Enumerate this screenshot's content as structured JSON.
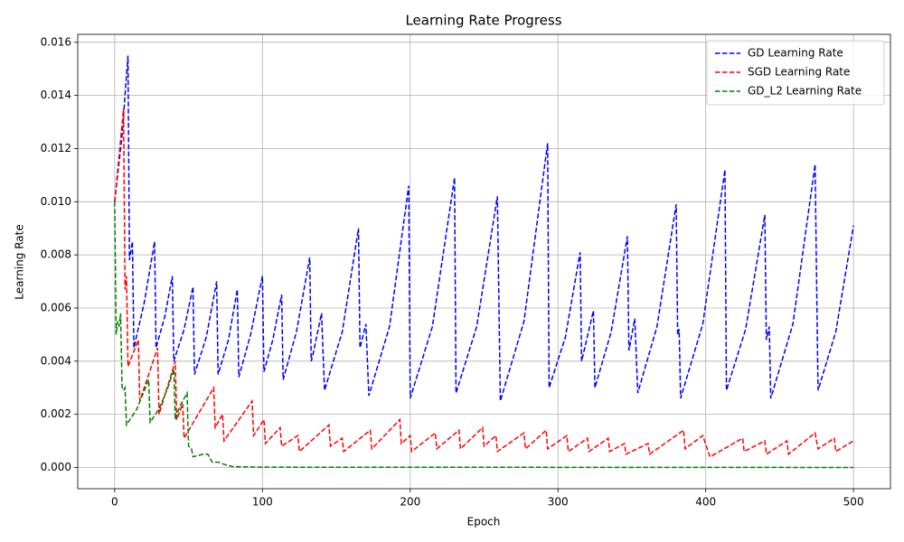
{
  "chart_data": {
    "type": "line",
    "title": "Learning Rate Progress",
    "x_label": "Epoch",
    "y_label": "Learning Rate",
    "xlim": [
      -25,
      525
    ],
    "ylim": [
      -0.0008,
      0.0163
    ],
    "xticks": [
      0,
      100,
      200,
      300,
      400,
      500
    ],
    "yticks": [
      {
        "value": 0,
        "label": "0.000"
      },
      {
        "value": 0.002,
        "label": "0.002"
      },
      {
        "value": 0.004,
        "label": "0.004"
      },
      {
        "value": 0.006,
        "label": "0.006"
      },
      {
        "value": 0.008,
        "label": "0.008"
      },
      {
        "value": 0.01,
        "label": "0.010"
      },
      {
        "value": 0.012,
        "label": "0.012"
      },
      {
        "value": 0.014,
        "label": "0.014"
      },
      {
        "value": 0.016,
        "label": "0.016"
      }
    ],
    "grid": true,
    "legend": "upper right",
    "series": [
      {
        "name": "GD Learning Rate",
        "color": "#0000ff",
        "x": [
          0,
          5,
          9,
          10,
          12,
          13,
          20,
          27,
          28,
          34,
          39,
          40,
          47,
          53,
          54,
          62,
          69,
          70,
          77,
          83,
          84,
          92,
          100,
          101,
          107,
          113,
          114,
          123,
          132,
          133,
          134,
          140,
          142,
          154,
          165,
          166,
          170,
          172,
          186,
          199,
          200,
          215,
          230,
          231,
          245,
          259,
          261,
          277,
          293,
          294,
          305,
          315,
          316,
          324,
          325,
          336,
          347,
          348,
          352,
          354,
          367,
          380,
          381,
          382,
          383,
          398,
          413,
          414,
          427,
          440,
          441,
          443,
          444,
          459,
          474,
          476,
          488,
          500
        ],
        "values": [
          0.01,
          0.0125,
          0.0155,
          0.0078,
          0.0085,
          0.0045,
          0.0062,
          0.0085,
          0.0045,
          0.0057,
          0.0072,
          0.004,
          0.0052,
          0.0068,
          0.0035,
          0.0049,
          0.007,
          0.0035,
          0.0048,
          0.0067,
          0.0034,
          0.005,
          0.0072,
          0.0036,
          0.0048,
          0.0065,
          0.0033,
          0.0051,
          0.0079,
          0.004,
          0.0042,
          0.0058,
          0.0029,
          0.0051,
          0.009,
          0.0045,
          0.0054,
          0.0027,
          0.0053,
          0.0106,
          0.0026,
          0.0053,
          0.0109,
          0.0028,
          0.0053,
          0.0102,
          0.0025,
          0.0055,
          0.0122,
          0.003,
          0.0049,
          0.0081,
          0.004,
          0.0059,
          0.003,
          0.0051,
          0.0087,
          0.0044,
          0.0056,
          0.0028,
          0.0053,
          0.0099,
          0.005,
          0.0052,
          0.0026,
          0.0054,
          0.0112,
          0.0029,
          0.0052,
          0.0095,
          0.0048,
          0.0053,
          0.0026,
          0.0054,
          0.0114,
          0.0029,
          0.0051,
          0.0091
        ]
      },
      {
        "name": "SGD Learning Rate",
        "color": "#ff0000",
        "x": [
          0,
          6,
          7,
          8,
          9,
          16,
          17,
          29,
          30,
          41,
          42,
          46,
          47,
          67,
          68,
          73,
          74,
          93,
          94,
          101,
          102,
          112,
          113,
          124,
          125,
          145,
          146,
          154,
          155,
          173,
          174,
          193,
          194,
          200,
          201,
          217,
          218,
          233,
          234,
          249,
          250,
          258,
          259,
          277,
          278,
          292,
          293,
          306,
          307,
          320,
          321,
          334,
          335,
          345,
          346,
          361,
          362,
          385,
          386,
          398,
          401,
          403,
          425,
          426,
          440,
          441,
          455,
          456,
          474,
          476,
          487,
          488,
          500
        ],
        "values": [
          0.01,
          0.0135,
          0.0067,
          0.0072,
          0.0038,
          0.0048,
          0.0025,
          0.0045,
          0.002,
          0.004,
          0.0018,
          0.0024,
          0.0011,
          0.003,
          0.0015,
          0.002,
          0.001,
          0.0025,
          0.0012,
          0.0018,
          0.0009,
          0.0015,
          0.0008,
          0.0012,
          0.0006,
          0.0016,
          0.0008,
          0.0011,
          0.0006,
          0.0014,
          0.0007,
          0.0018,
          0.0009,
          0.0012,
          0.0006,
          0.0013,
          0.0007,
          0.0014,
          0.0007,
          0.0015,
          0.0008,
          0.0012,
          0.0006,
          0.0013,
          0.0007,
          0.0014,
          0.0007,
          0.0012,
          0.0006,
          0.0011,
          0.0006,
          0.0011,
          0.0006,
          0.0009,
          0.0005,
          0.0009,
          0.0005,
          0.0014,
          0.0007,
          0.0012,
          0.0007,
          0.0004,
          0.0011,
          0.0006,
          0.001,
          0.0005,
          0.001,
          0.0005,
          0.0013,
          0.0007,
          0.0011,
          0.0006,
          0.001
        ]
      },
      {
        "name": "GD_L2 Learning Rate",
        "color": "#008000",
        "x": [
          0,
          1,
          2,
          3,
          4,
          5,
          6,
          7,
          8,
          15,
          23,
          24,
          30,
          36,
          40,
          41,
          44,
          49,
          50,
          52,
          53,
          60,
          63,
          66,
          70,
          75,
          80,
          100,
          500
        ],
        "values": [
          0.01,
          0.005,
          0.0055,
          0.0053,
          0.0058,
          0.003,
          0.0029,
          0.003,
          0.0016,
          0.0022,
          0.0033,
          0.0017,
          0.0022,
          0.003,
          0.0037,
          0.0018,
          0.0023,
          0.0028,
          0.0008,
          0.0007,
          0.0004,
          0.0005,
          0.0005,
          0.0002,
          0.0002,
          0.0001,
          3e-05,
          1e-05,
          0
        ]
      }
    ]
  }
}
